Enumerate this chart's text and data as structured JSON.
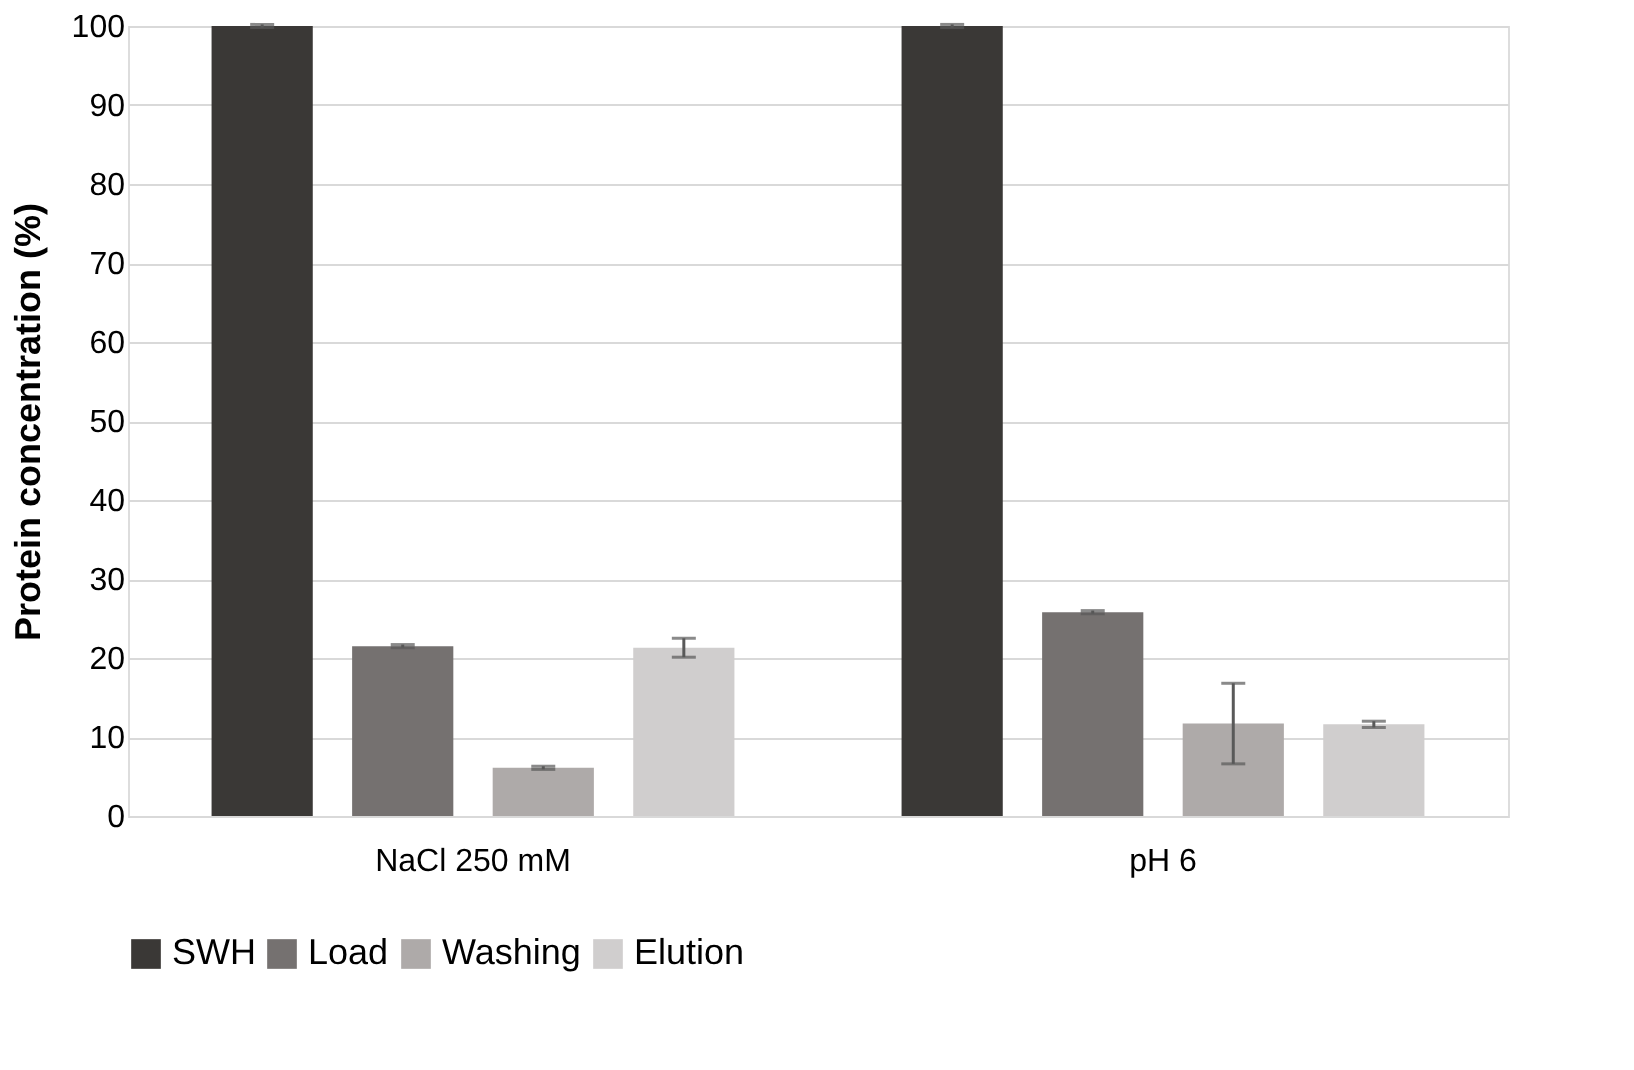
{
  "chart_data": {
    "type": "bar",
    "ylabel": "Protein concentration (%)",
    "categories": [
      "NaCl 250 mM",
      "pH 6"
    ],
    "series": [
      {
        "name": "SWH",
        "color": "#3a3836",
        "values": [
          100,
          100
        ],
        "errors": [
          0.2,
          0.2
        ]
      },
      {
        "name": "Load",
        "color": "#757170",
        "values": [
          21.5,
          25.8
        ],
        "errors": [
          0.2,
          0.2
        ]
      },
      {
        "name": "Washing",
        "color": "#aeaaa9",
        "values": [
          6.1,
          11.7
        ],
        "errors": [
          0.2,
          5.1
        ]
      },
      {
        "name": "Elution",
        "color": "#d0cece",
        "values": [
          21.3,
          11.6
        ],
        "errors": [
          1.2,
          0.4
        ]
      }
    ],
    "ylim": [
      0,
      100
    ],
    "yticks": [
      0,
      10,
      20,
      30,
      40,
      50,
      60,
      70,
      80,
      90,
      100
    ],
    "grid": "y",
    "legend": "bottom"
  }
}
